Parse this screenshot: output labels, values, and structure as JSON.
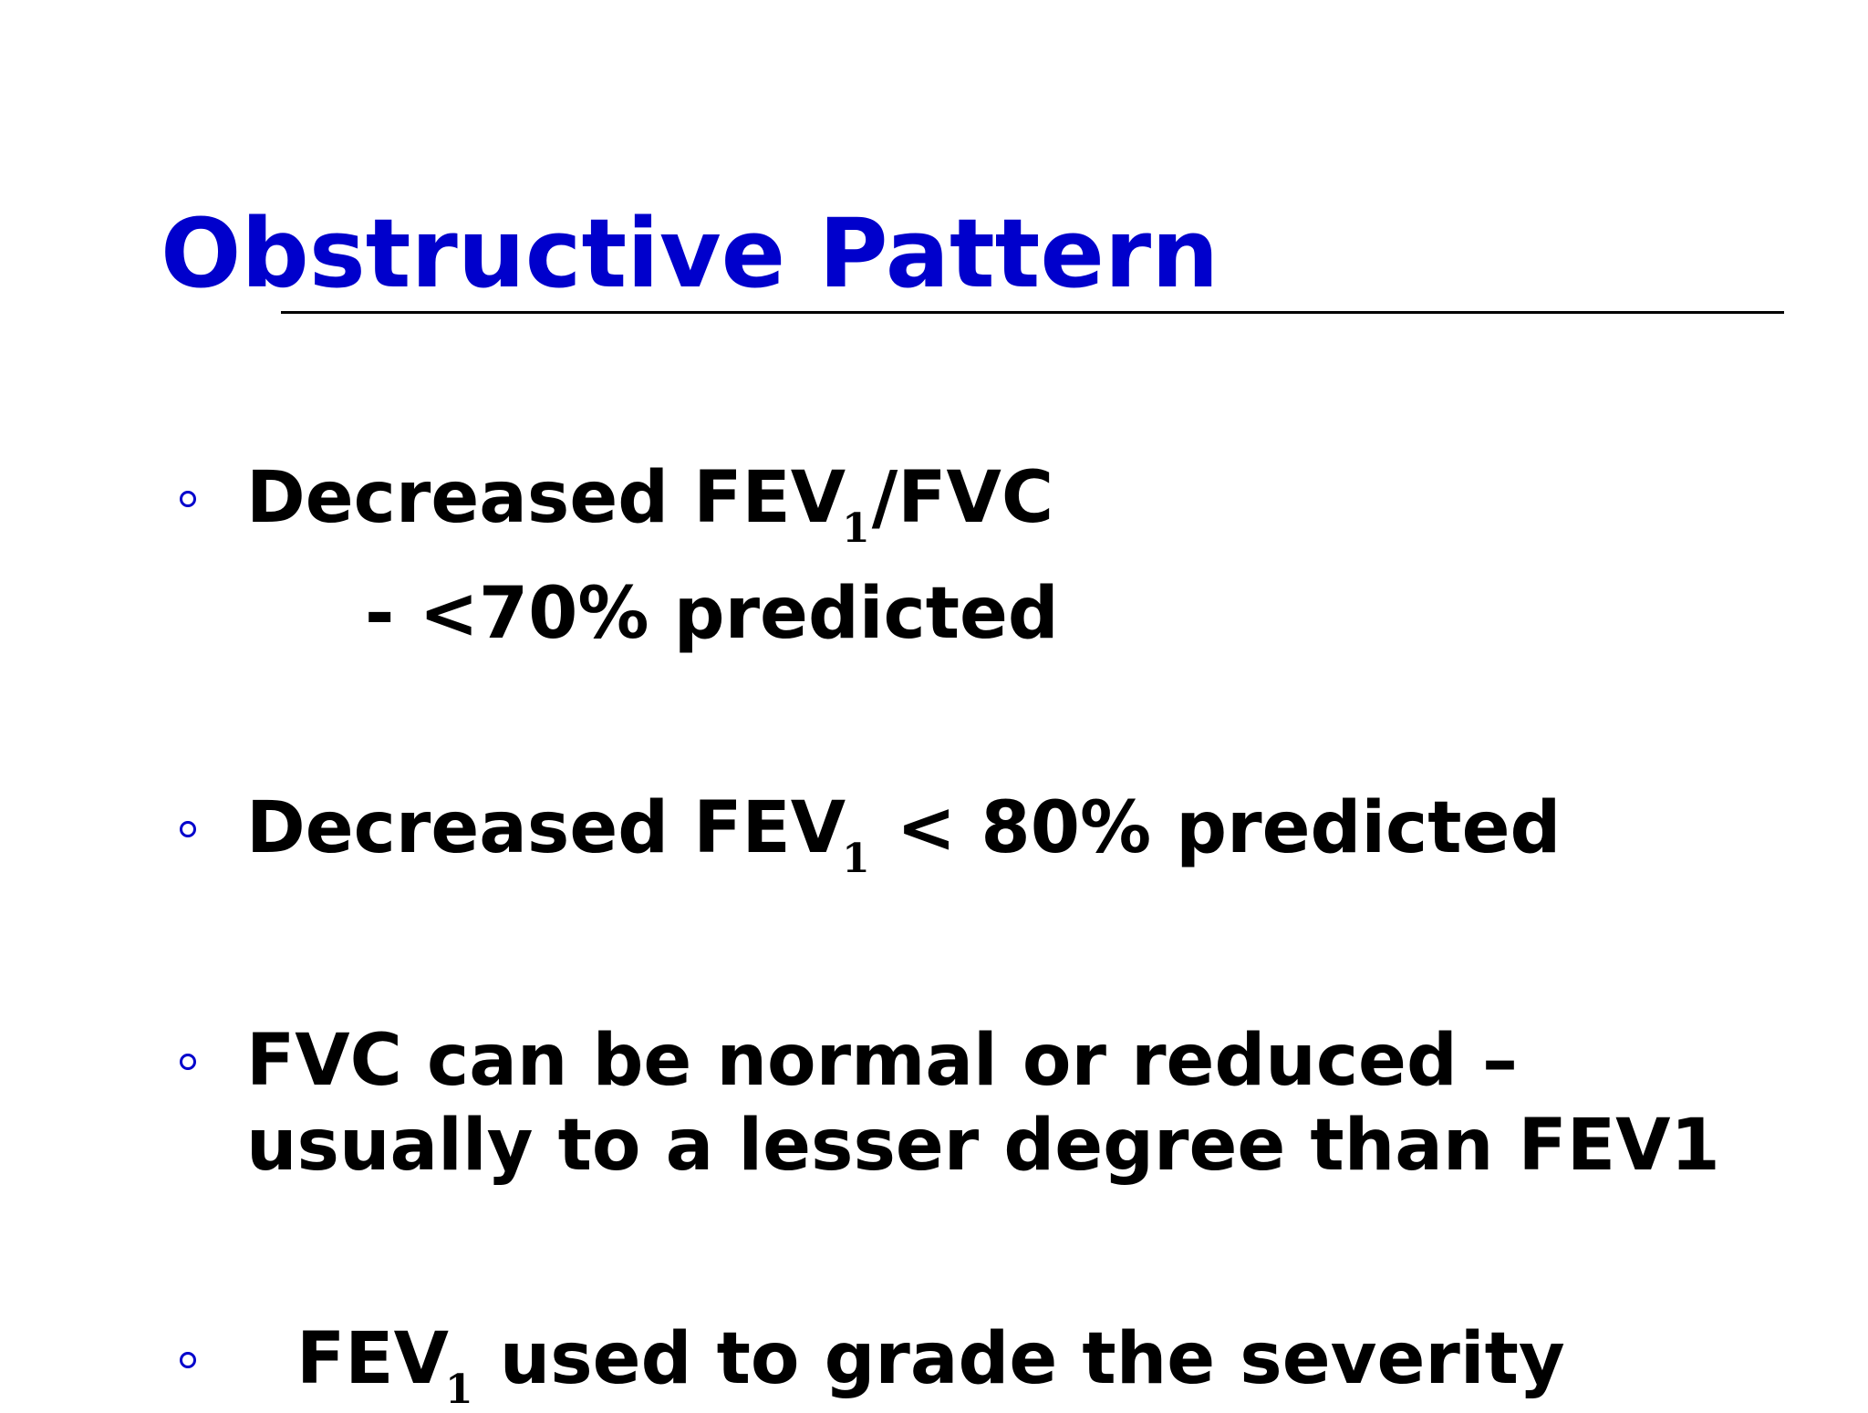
{
  "slide": {
    "title": "Obstructive Pattern",
    "colors": {
      "title": "#0000cc",
      "bullet": "#0000cc",
      "text": "#000000",
      "rule": "#000000"
    },
    "bullet_icon": "hollow-circle",
    "bullets": [
      {
        "before": "Decreased FEV",
        "subscript": "1",
        "after": "/FVC",
        "sub_point": "- <70% predicted"
      },
      {
        "before": "Decreased FEV",
        "subscript": "1",
        "after": " < 80% predicted"
      },
      {
        "line1": "FVC can be normal or reduced –",
        "line2": "usually to a lesser degree than FEV1"
      },
      {
        "before": "FEV",
        "subscript": "1",
        "after": " used to grade the severity"
      }
    ]
  }
}
